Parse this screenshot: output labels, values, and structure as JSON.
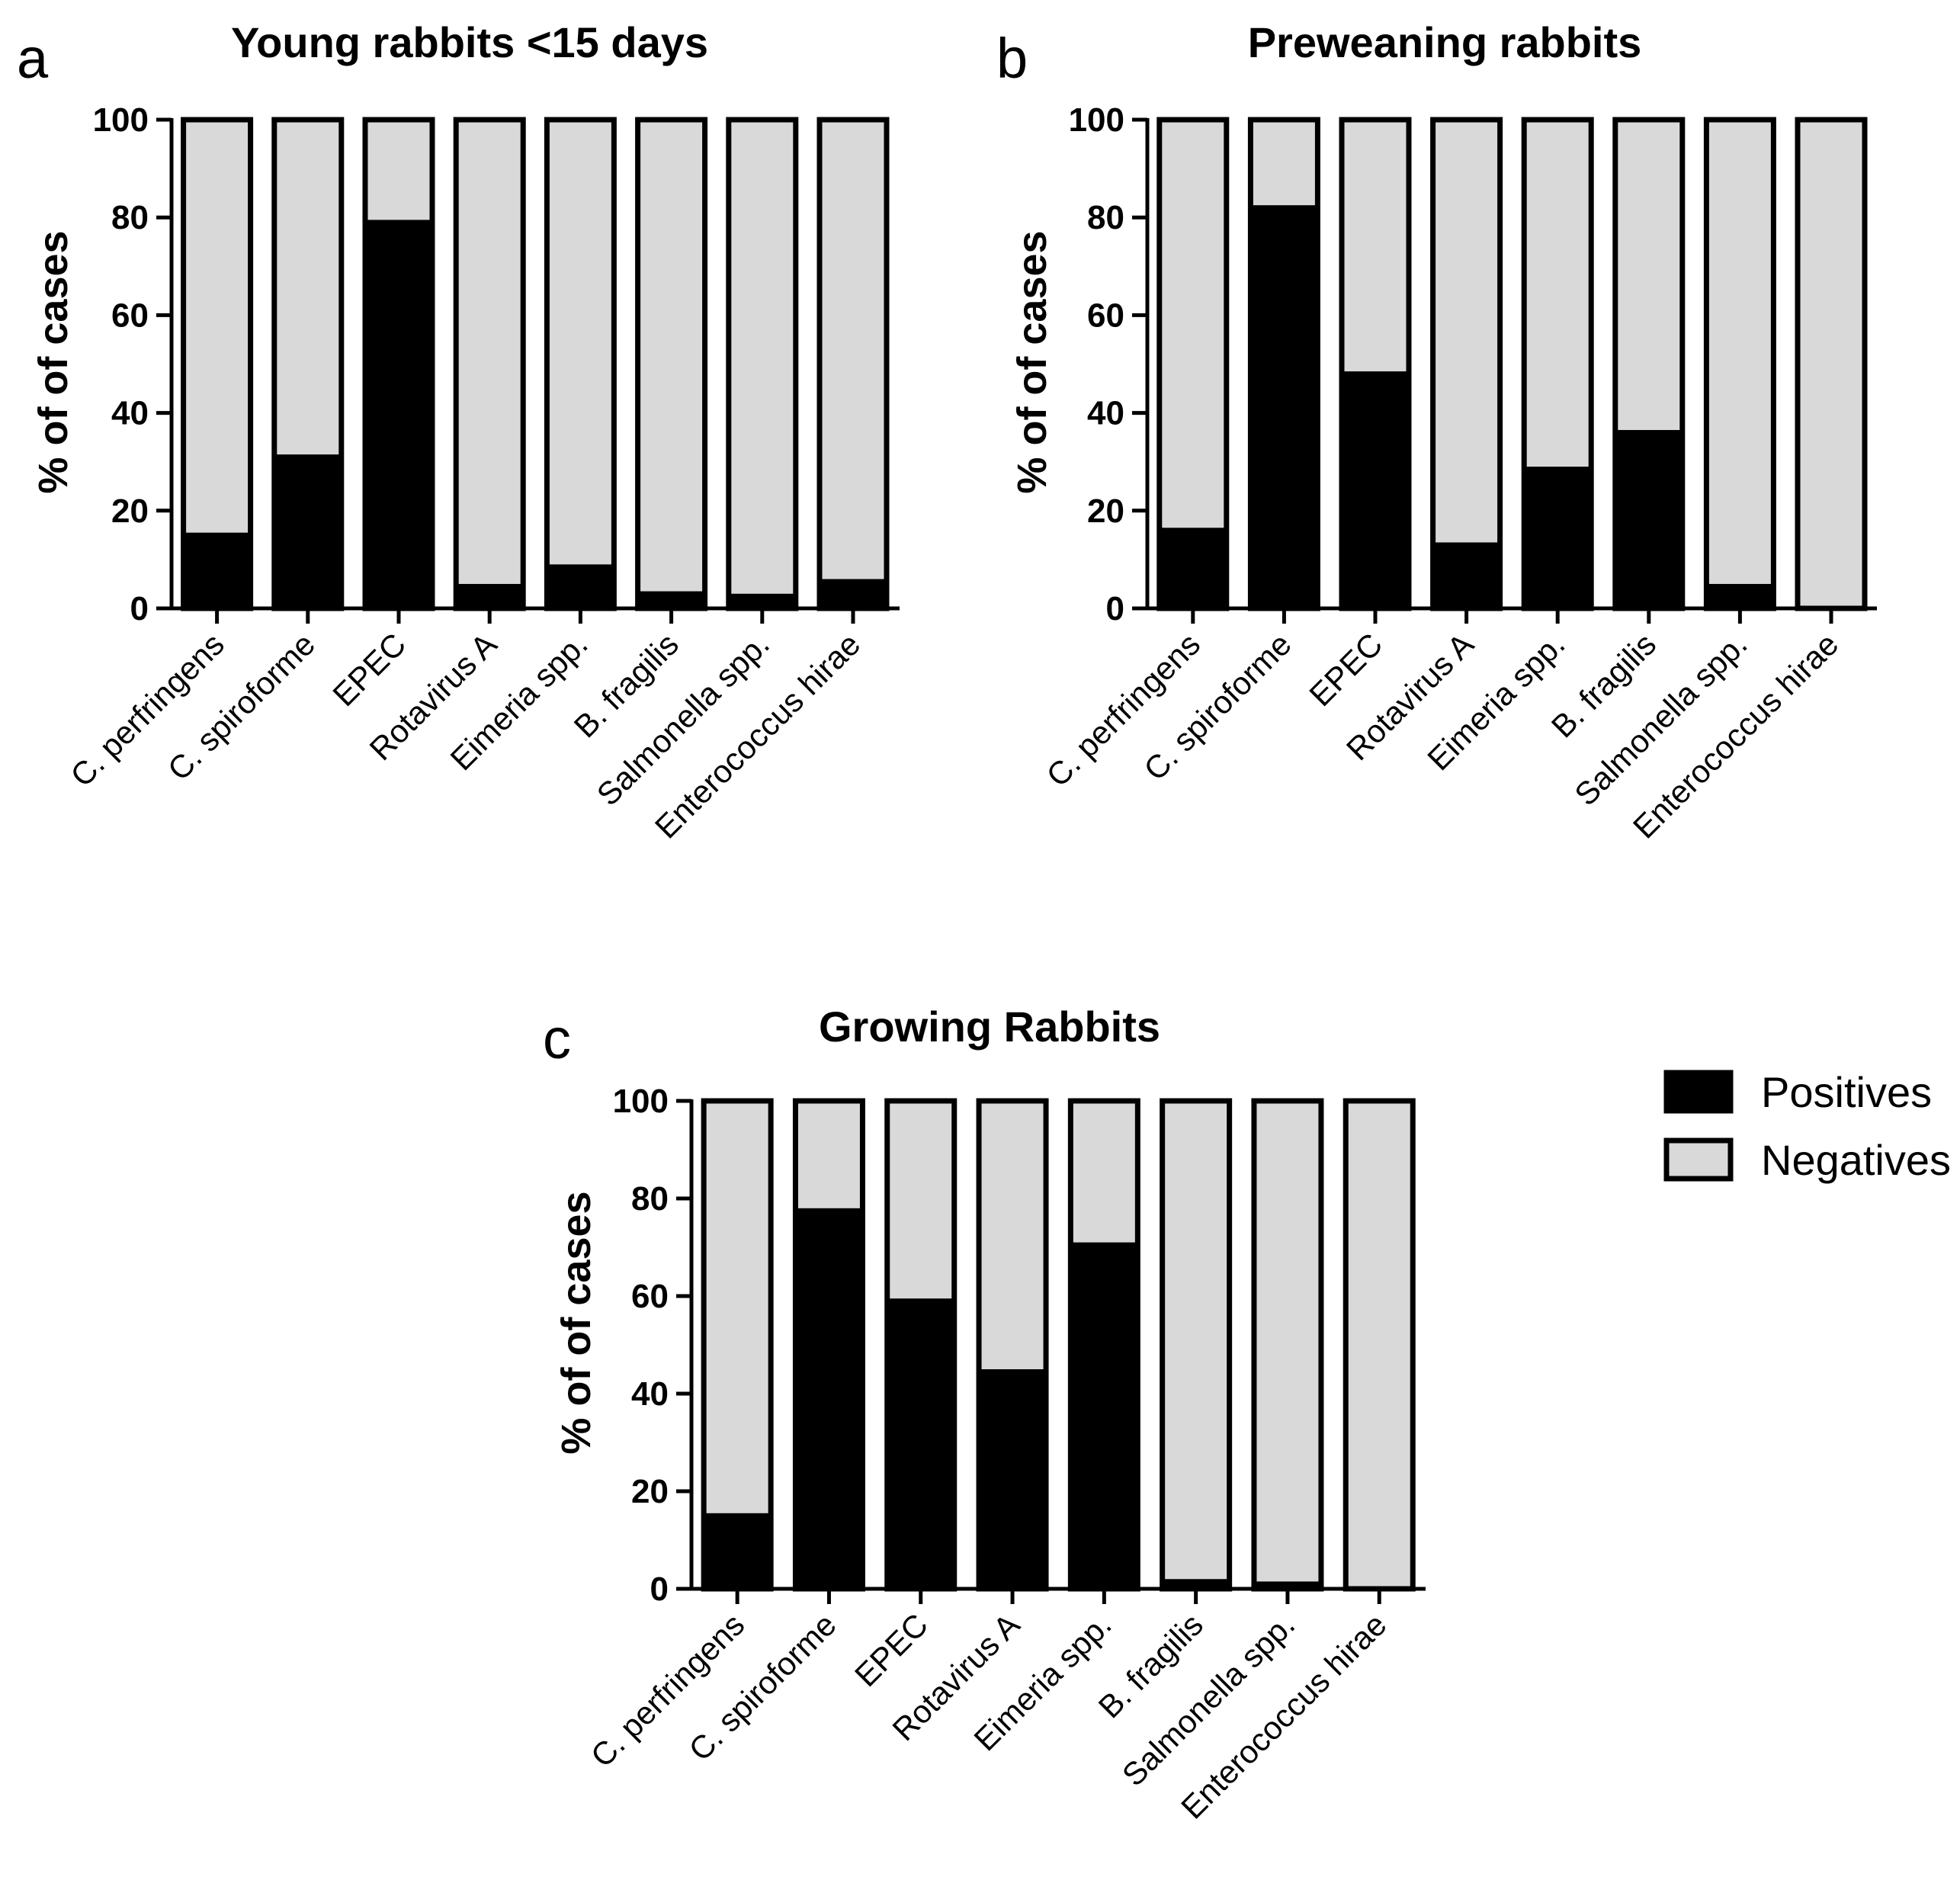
{
  "colors": {
    "positive": "#000000",
    "negative": "#d9d9d9",
    "edge": "#000000"
  },
  "legend": {
    "items": [
      {
        "label": "Positives",
        "color": "#000000"
      },
      {
        "label": "Negatives",
        "color": "#d9d9d9"
      }
    ]
  },
  "chart_data": [
    {
      "type": "bar",
      "panel": "a",
      "title": "Young rabbits <15 days",
      "ylabel": "% of of cases",
      "xlabel": "",
      "ylim": [
        0,
        100
      ],
      "yticks": [
        0,
        20,
        40,
        60,
        80,
        100
      ],
      "categories": [
        "C. perfringens",
        "C. spiroforme",
        "EPEC",
        "Rotavirus A",
        "Eimeria spp.",
        "B. fragilis",
        "Salmonella spp.",
        "Enterococcus hirae"
      ],
      "series": [
        {
          "name": "Positives",
          "values": [
            15.5,
            31.5,
            79.5,
            5,
            9,
            3.5,
            3,
            6
          ]
        },
        {
          "name": "Negatives",
          "values": [
            84.5,
            68.5,
            20.5,
            95,
            91,
            96.5,
            97,
            94
          ]
        }
      ]
    },
    {
      "type": "bar",
      "panel": "b",
      "title": "Preweaning rabbits",
      "ylabel": "% of of cases",
      "xlabel": "",
      "ylim": [
        0,
        100
      ],
      "yticks": [
        0,
        20,
        40,
        60,
        80,
        100
      ],
      "categories": [
        "C. perfringens",
        "C. spiroforme",
        "EPEC",
        "Rotavirus A",
        "Eimeria spp.",
        "B. fragilis",
        "Salmonella spp.",
        "Enterococcus hirae"
      ],
      "series": [
        {
          "name": "Positives",
          "values": [
            16.5,
            82.5,
            48.5,
            13.5,
            29,
            36.5,
            5,
            0
          ]
        },
        {
          "name": "Negatives",
          "values": [
            83.5,
            17.5,
            51.5,
            86.5,
            71,
            63.5,
            95,
            100
          ]
        }
      ]
    },
    {
      "type": "bar",
      "panel": "c",
      "title": "Growing Rabbits",
      "ylabel": "% of of cases",
      "xlabel": "",
      "ylim": [
        0,
        100
      ],
      "yticks": [
        0,
        20,
        40,
        60,
        80,
        100
      ],
      "categories": [
        "C. perfringens",
        "C. spiroforme",
        "EPEC",
        "Rotavirus A",
        "Eimeria spp.",
        "B. fragilis",
        "Salmonella spp.",
        "Enterococcus hirae"
      ],
      "series": [
        {
          "name": "Positives",
          "values": [
            15.5,
            78,
            59.5,
            45,
            71,
            2,
            1.5,
            0
          ]
        },
        {
          "name": "Negatives",
          "values": [
            84.5,
            22,
            40.5,
            55,
            29,
            98,
            98.5,
            100
          ]
        }
      ]
    }
  ]
}
